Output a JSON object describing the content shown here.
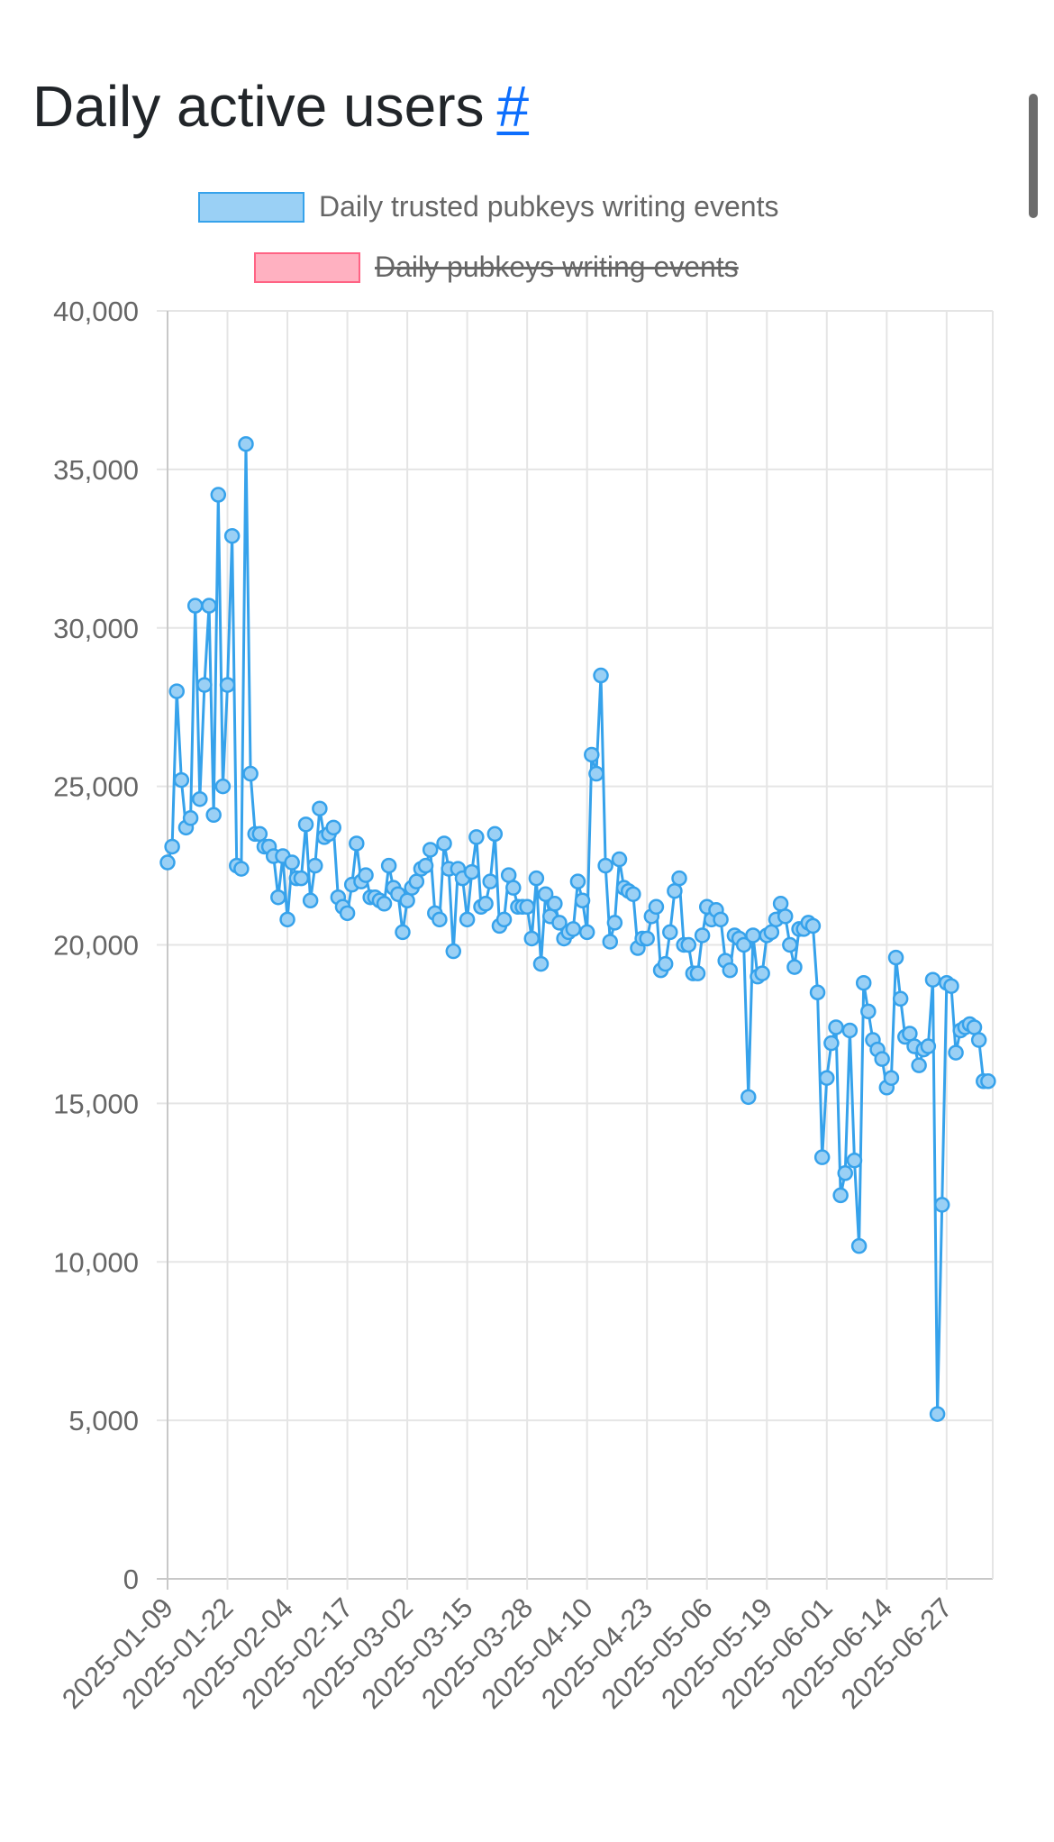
{
  "heading": {
    "title": "Daily active users",
    "anchor": "#"
  },
  "colors": {
    "series1": "#36a2eb",
    "series1_fill": "#9ad0f5",
    "series2": "#ff6384",
    "series2_fill": "#ffb1c1",
    "grid": "#e5e5e5",
    "tick": "#666666"
  },
  "chart_data": {
    "type": "line",
    "title": "",
    "xlabel": "",
    "ylabel": "",
    "ylim": [
      0,
      40000
    ],
    "yticks": [
      "0",
      "5,000",
      "10,000",
      "15,000",
      "20,000",
      "25,000",
      "30,000",
      "35,000",
      "40,000"
    ],
    "xtick_labels": [
      "2025-01-09",
      "2025-01-22",
      "2025-02-04",
      "2025-02-17",
      "2025-03-02",
      "2025-03-15",
      "2025-03-28",
      "2025-04-10",
      "2025-04-23",
      "2025-05-06",
      "2025-05-19",
      "2025-06-01",
      "2025-06-14",
      "2025-06-27"
    ],
    "x_start": "2025-01-09",
    "x_end": "2025-07-07",
    "grid": true,
    "legend_position": "top",
    "series": [
      {
        "name": "Daily trusted pubkeys writing events",
        "hidden": false,
        "values": [
          22600,
          23100,
          28000,
          25200,
          23700,
          24000,
          30700,
          24600,
          28200,
          30700,
          24100,
          34200,
          25000,
          28200,
          32900,
          22500,
          22400,
          35800,
          25400,
          23500,
          23500,
          23100,
          23100,
          22800,
          21500,
          22800,
          20800,
          22600,
          22100,
          22100,
          23800,
          21400,
          22500,
          24300,
          23400,
          23500,
          23700,
          21500,
          21200,
          21000,
          21900,
          23200,
          22000,
          22200,
          21500,
          21500,
          21400,
          21300,
          22500,
          21800,
          21600,
          20400,
          21400,
          21800,
          22000,
          22400,
          22500,
          23000,
          21000,
          20800,
          23200,
          22400,
          19800,
          22400,
          22100,
          20800,
          22300,
          23400,
          21200,
          21300,
          22000,
          23500,
          20600,
          20800,
          22200,
          21800,
          21200,
          21200,
          21200,
          20200,
          22100,
          19400,
          21600,
          20900,
          21300,
          20700,
          20200,
          20400,
          20500,
          22000,
          21400,
          20400,
          26000,
          25400,
          28500,
          22500,
          20100,
          20700,
          22700,
          21800,
          21700,
          21600,
          19900,
          20200,
          20200,
          20900,
          21200,
          19200,
          19400,
          20400,
          21700,
          22100,
          20000,
          20000,
          19100,
          19100,
          20300,
          21200,
          20800,
          21100,
          20800,
          19500,
          19200,
          20300,
          20200,
          20000,
          15200,
          20300,
          19000,
          19100,
          20300,
          20400,
          20800,
          21300,
          20900,
          20000,
          19300,
          20500,
          20500,
          20700,
          20600,
          18500,
          13300,
          15800,
          16900,
          17400,
          12100,
          12800,
          17300,
          13200,
          10500,
          18800,
          17900,
          17000,
          16700,
          16400,
          15500,
          15800,
          19600,
          18300,
          17100,
          17200,
          16800,
          16200,
          16700,
          16800,
          18900,
          5200,
          11800,
          18800,
          18700,
          16600,
          17300,
          17400,
          17500,
          17400,
          17000,
          15700,
          15700
        ]
      },
      {
        "name": "Daily pubkeys writing events",
        "hidden": true,
        "values": []
      }
    ]
  }
}
